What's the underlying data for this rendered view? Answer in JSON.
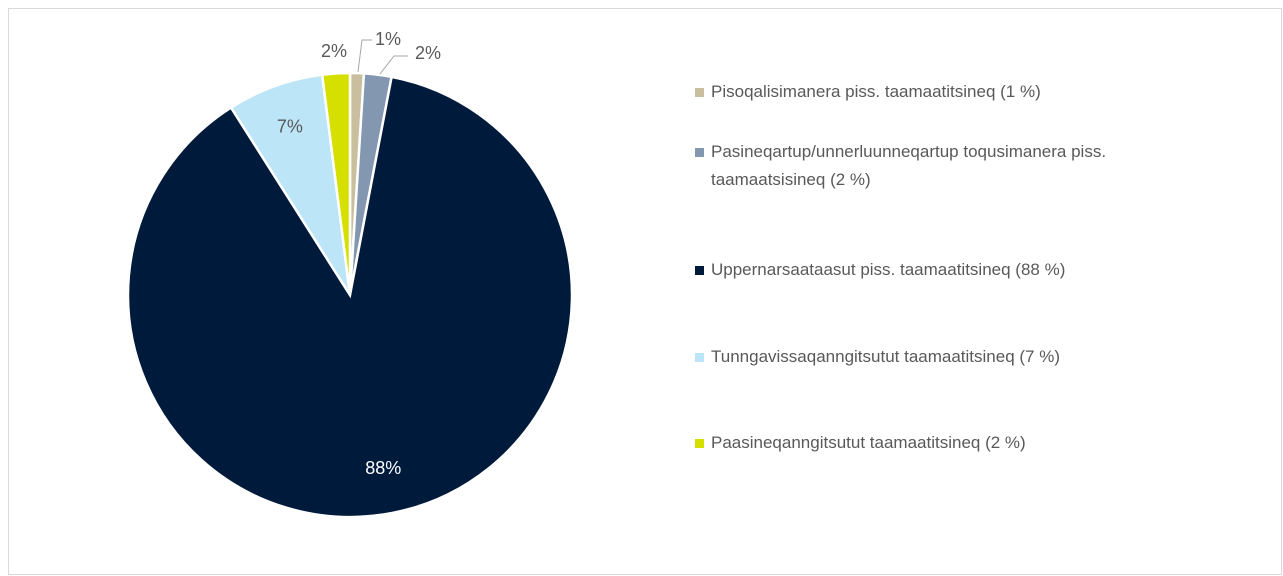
{
  "chart_data": {
    "type": "pie",
    "categories": [
      "Pisoqalisimanera piss. taamaatitsineq (1 %)",
      "Pasineqartup/unnerluunneqartup toqusimanera piss. taamaatsisineq (2 %)",
      "Uppernarsaataasut piss. taamaatitsineq (88 %)",
      "Tunngavissaqanngitsutut taamaatitsineq (7 %)",
      "Paasineqanngitsutut taamaatitsineq (2 %)"
    ],
    "values": [
      1,
      2,
      88,
      7,
      2
    ],
    "value_labels": [
      "1%",
      "2%",
      "88%",
      "7%",
      "2%"
    ],
    "colors": [
      "#c9bf9e",
      "#8497b0",
      "#001a3b",
      "#bde5f8",
      "#d5e000"
    ],
    "legend": "right"
  }
}
